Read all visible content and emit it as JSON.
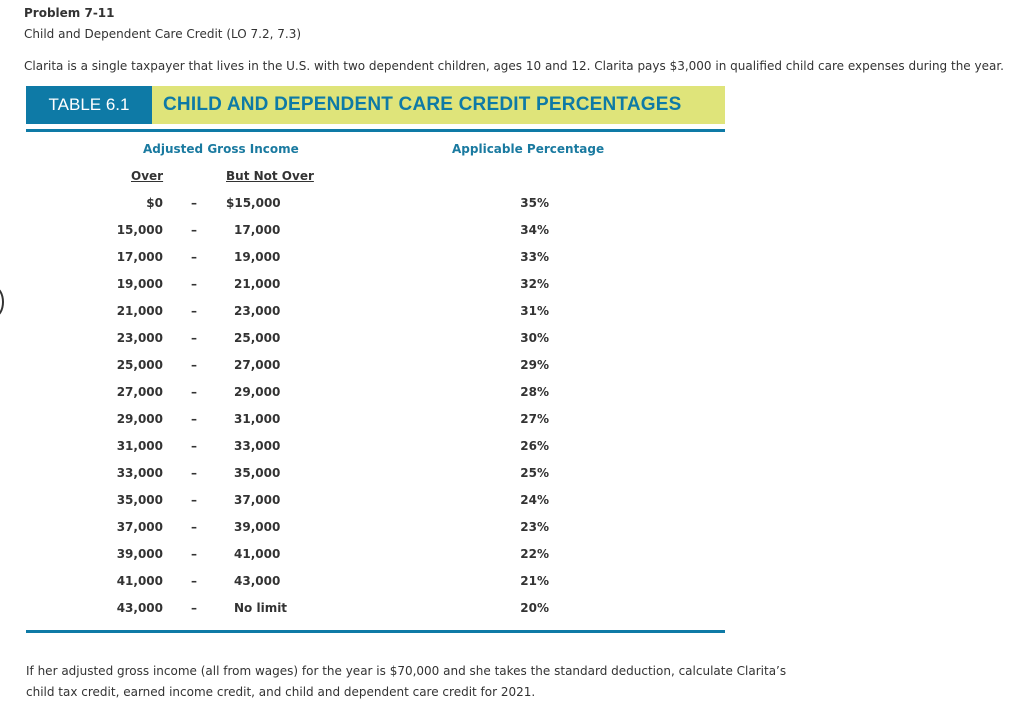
{
  "problem": {
    "title": "Problem 7-11",
    "subtitle": "Child and Dependent Care Credit (LO 7.2, 7.3)",
    "intro": "Clarita is a single taxpayer that lives in the U.S. with two dependent children, ages 10 and 12. Clarita pays $3,000 in qualified child care expenses during the year."
  },
  "table": {
    "tag": "TABLE 6.1",
    "title": "CHILD AND DEPENDENT CARE CREDIT PERCENTAGES",
    "colors": {
      "tag_bg": "#0e7aa6",
      "title_bg": "#dfe47a",
      "title_text": "#0e7aa6",
      "rule": "#0e7aa6"
    },
    "headers": {
      "agi": "Adjusted Gross Income",
      "pct": "Applicable Percentage",
      "over": "Over",
      "not_over": "But Not Over"
    },
    "dash": "–",
    "rows": [
      {
        "over": "$0",
        "not_over": "$15,000",
        "pct": "35%"
      },
      {
        "over": "15,000",
        "not_over": "17,000",
        "pct": "34%"
      },
      {
        "over": "17,000",
        "not_over": "19,000",
        "pct": "33%"
      },
      {
        "over": "19,000",
        "not_over": "21,000",
        "pct": "32%"
      },
      {
        "over": "21,000",
        "not_over": "23,000",
        "pct": "31%"
      },
      {
        "over": "23,000",
        "not_over": "25,000",
        "pct": "30%"
      },
      {
        "over": "25,000",
        "not_over": "27,000",
        "pct": "29%"
      },
      {
        "over": "27,000",
        "not_over": "29,000",
        "pct": "28%"
      },
      {
        "over": "29,000",
        "not_over": "31,000",
        "pct": "27%"
      },
      {
        "over": "31,000",
        "not_over": "33,000",
        "pct": "26%"
      },
      {
        "over": "33,000",
        "not_over": "35,000",
        "pct": "25%"
      },
      {
        "over": "35,000",
        "not_over": "37,000",
        "pct": "24%"
      },
      {
        "over": "37,000",
        "not_over": "39,000",
        "pct": "23%"
      },
      {
        "over": "39,000",
        "not_over": "41,000",
        "pct": "22%"
      },
      {
        "over": "41,000",
        "not_over": "43,000",
        "pct": "21%"
      },
      {
        "over": "43,000",
        "not_over": "No limit",
        "pct": "20%"
      }
    ]
  },
  "question": {
    "line1": "If her adjusted gross income (all from wages) for the year is $70,000 and she takes the standard deduction, calculate Clarita’s",
    "line2": "child tax credit, earned income credit, and child and dependent care credit for 2021."
  }
}
